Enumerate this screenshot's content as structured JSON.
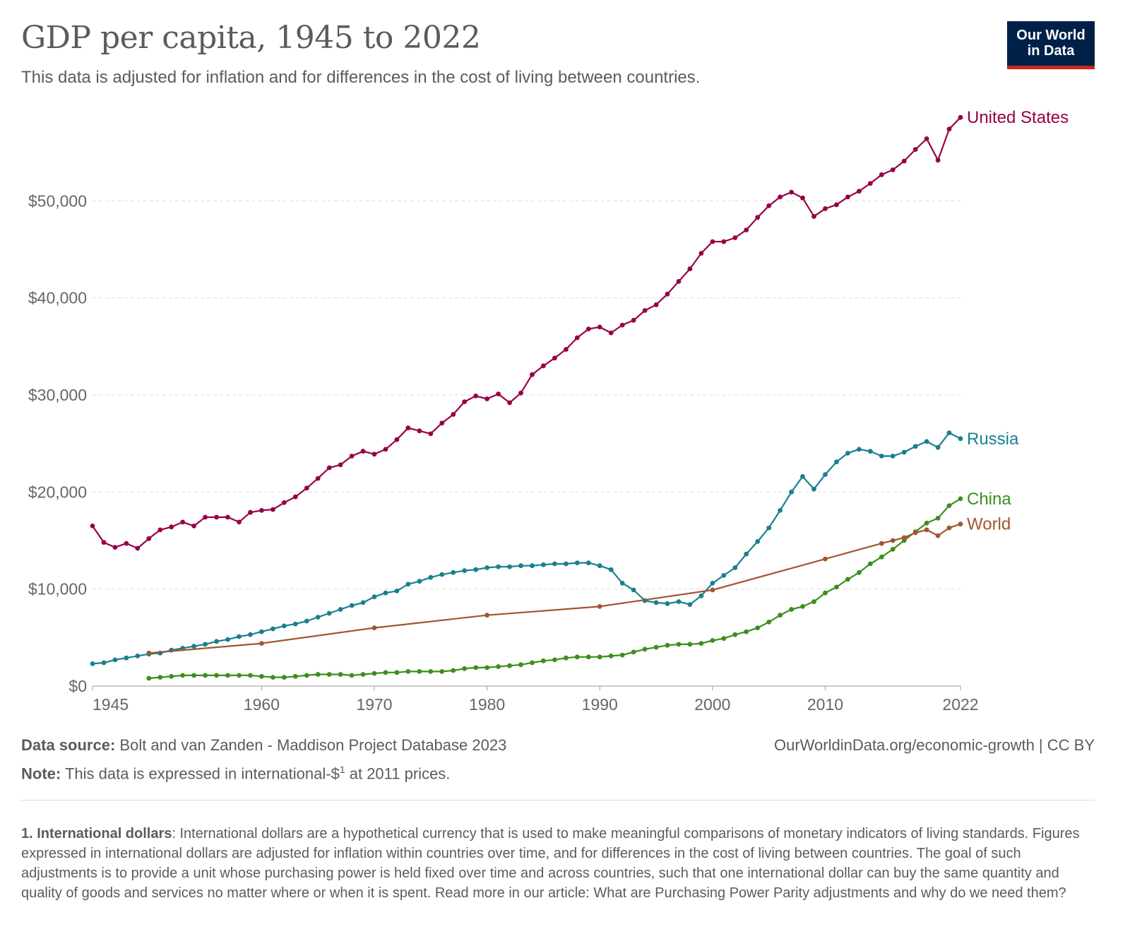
{
  "header": {
    "title": "GDP per capita, 1945 to 2022",
    "subtitle": "This data is adjusted for inflation and for differences in the cost of living between countries.",
    "logo_line1": "Our World",
    "logo_line2": "in Data"
  },
  "footer": {
    "source_label": "Data source:",
    "source_text": "Bolt and van Zanden - Maddison Project Database 2023",
    "note_label": "Note:",
    "note_text_before": "This data is expressed in international-$",
    "note_sup": "1",
    "note_text_after": " at 2011 prices.",
    "url": "OurWorldinData.org/economic-growth | CC BY"
  },
  "footnote": {
    "label": "1. International dollars",
    "text": ": International dollars are a hypothetical currency that is used to make meaningful comparisons of monetary indicators of living standards. Figures expressed in international dollars are adjusted for inflation within countries over time, and for differences in the cost of living between countries. The goal of such adjustments is to provide a unit whose purchasing power is held fixed over time and across countries, such that one international dollar can buy the same quantity and quality of goods and services no matter where or when it is spent. Read more in our article: What are Purchasing Power Parity adjustments and why do we need them?"
  },
  "chart_data": {
    "type": "line",
    "title": "GDP per capita, 1945 to 2022",
    "xlabel": "",
    "ylabel": "",
    "xlim": [
      1945,
      2022
    ],
    "ylim": [
      0,
      60000
    ],
    "x_ticks": [
      {
        "value": 1945,
        "label": "1945"
      },
      {
        "value": 1960,
        "label": "1960"
      },
      {
        "value": 1970,
        "label": "1970"
      },
      {
        "value": 1980,
        "label": "1980"
      },
      {
        "value": 1990,
        "label": "1990"
      },
      {
        "value": 2000,
        "label": "2000"
      },
      {
        "value": 2010,
        "label": "2010"
      },
      {
        "value": 2022,
        "label": "2022"
      }
    ],
    "y_ticks": [
      {
        "value": 0,
        "label": "$0"
      },
      {
        "value": 10000,
        "label": "$10,000"
      },
      {
        "value": 20000,
        "label": "$20,000"
      },
      {
        "value": 30000,
        "label": "$30,000"
      },
      {
        "value": 40000,
        "label": "$40,000"
      },
      {
        "value": 50000,
        "label": "$50,000"
      }
    ],
    "grid": "horizontal dashed",
    "legend": "line-end labels",
    "series": [
      {
        "name": "United States",
        "color": "#970046",
        "x": [
          1945,
          1946,
          1947,
          1948,
          1949,
          1950,
          1951,
          1952,
          1953,
          1954,
          1955,
          1956,
          1957,
          1958,
          1959,
          1960,
          1961,
          1962,
          1963,
          1964,
          1965,
          1966,
          1967,
          1968,
          1969,
          1970,
          1971,
          1972,
          1973,
          1974,
          1975,
          1976,
          1977,
          1978,
          1979,
          1980,
          1981,
          1982,
          1983,
          1984,
          1985,
          1986,
          1987,
          1988,
          1989,
          1990,
          1991,
          1992,
          1993,
          1994,
          1995,
          1996,
          1997,
          1998,
          1999,
          2000,
          2001,
          2002,
          2003,
          2004,
          2005,
          2006,
          2007,
          2008,
          2009,
          2010,
          2011,
          2012,
          2013,
          2014,
          2015,
          2016,
          2017,
          2018,
          2019,
          2020,
          2021,
          2022
        ],
        "values": [
          16500,
          14800,
          14300,
          14700,
          14200,
          15200,
          16100,
          16400,
          16900,
          16500,
          17400,
          17400,
          17400,
          16900,
          17900,
          18100,
          18200,
          18900,
          19500,
          20400,
          21400,
          22500,
          22800,
          23700,
          24200,
          23900,
          24400,
          25400,
          26600,
          26300,
          26000,
          27100,
          28000,
          29300,
          29900,
          29600,
          30100,
          29200,
          30200,
          32100,
          33000,
          33800,
          34700,
          35900,
          36800,
          37000,
          36400,
          37200,
          37700,
          38700,
          39300,
          40400,
          41700,
          43000,
          44600,
          45800,
          45800,
          46200,
          47000,
          48300,
          49500,
          50400,
          50900,
          50300,
          48400,
          49200,
          49600,
          50400,
          51000,
          51800,
          52700,
          53200,
          54100,
          55300,
          56400,
          54200,
          57400,
          58600
        ]
      },
      {
        "name": "Russia",
        "color": "#18808e",
        "x": [
          1945,
          1946,
          1947,
          1948,
          1949,
          1950,
          1951,
          1952,
          1953,
          1954,
          1955,
          1956,
          1957,
          1958,
          1959,
          1960,
          1961,
          1962,
          1963,
          1964,
          1965,
          1966,
          1967,
          1968,
          1969,
          1970,
          1971,
          1972,
          1973,
          1974,
          1975,
          1976,
          1977,
          1978,
          1979,
          1980,
          1981,
          1982,
          1983,
          1984,
          1985,
          1986,
          1987,
          1988,
          1989,
          1990,
          1991,
          1992,
          1993,
          1994,
          1995,
          1996,
          1997,
          1998,
          1999,
          2000,
          2001,
          2002,
          2003,
          2004,
          2005,
          2006,
          2007,
          2008,
          2009,
          2010,
          2011,
          2012,
          2013,
          2014,
          2015,
          2016,
          2017,
          2018,
          2019,
          2020,
          2021,
          2022
        ],
        "values": [
          2300,
          2400,
          2700,
          2900,
          3100,
          3300,
          3400,
          3700,
          3900,
          4100,
          4300,
          4600,
          4800,
          5100,
          5300,
          5600,
          5900,
          6200,
          6400,
          6700,
          7100,
          7500,
          7900,
          8300,
          8600,
          9200,
          9600,
          9800,
          10500,
          10800,
          11200,
          11500,
          11700,
          11900,
          12000,
          12200,
          12300,
          12300,
          12400,
          12400,
          12500,
          12600,
          12600,
          12700,
          12700,
          12400,
          12000,
          10600,
          9900,
          8800,
          8600,
          8500,
          8700,
          8400,
          9300,
          10600,
          11400,
          12200,
          13600,
          14900,
          16300,
          18100,
          20000,
          21600,
          20300,
          21800,
          23100,
          24000,
          24400,
          24200,
          23700,
          23700,
          24100,
          24700,
          25200,
          24600,
          26100,
          25500
        ]
      },
      {
        "name": "China",
        "color": "#3c8e1e",
        "x": [
          1950,
          1951,
          1952,
          1953,
          1954,
          1955,
          1956,
          1957,
          1958,
          1959,
          1960,
          1961,
          1962,
          1963,
          1964,
          1965,
          1966,
          1967,
          1968,
          1969,
          1970,
          1971,
          1972,
          1973,
          1974,
          1975,
          1976,
          1977,
          1978,
          1979,
          1980,
          1981,
          1982,
          1983,
          1984,
          1985,
          1986,
          1987,
          1988,
          1989,
          1990,
          1991,
          1992,
          1993,
          1994,
          1995,
          1996,
          1997,
          1998,
          1999,
          2000,
          2001,
          2002,
          2003,
          2004,
          2005,
          2006,
          2007,
          2008,
          2009,
          2010,
          2011,
          2012,
          2013,
          2014,
          2015,
          2016,
          2017,
          2018,
          2019,
          2020,
          2021,
          2022
        ],
        "values": [
          800,
          900,
          1000,
          1100,
          1100,
          1100,
          1100,
          1100,
          1100,
          1100,
          1000,
          900,
          900,
          1000,
          1100,
          1200,
          1200,
          1200,
          1100,
          1200,
          1300,
          1400,
          1400,
          1500,
          1500,
          1500,
          1500,
          1600,
          1800,
          1900,
          1900,
          2000,
          2100,
          2200,
          2400,
          2600,
          2700,
          2900,
          3000,
          3000,
          3000,
          3100,
          3200,
          3500,
          3800,
          4000,
          4200,
          4300,
          4300,
          4400,
          4700,
          4900,
          5300,
          5600,
          6000,
          6600,
          7300,
          7900,
          8200,
          8700,
          9600,
          10200,
          11000,
          11700,
          12600,
          13300,
          14100,
          15000,
          15900,
          16800,
          17300,
          18600,
          19300
        ]
      },
      {
        "name": "World",
        "color": "#a2552e",
        "x": [
          1950,
          1960,
          1970,
          1980,
          1990,
          2000,
          2010,
          2015,
          2016,
          2017,
          2018,
          2019,
          2020,
          2021,
          2022
        ],
        "values": [
          3400,
          4400,
          6000,
          7300,
          8200,
          9900,
          13100,
          14700,
          15000,
          15300,
          15800,
          16100,
          15500,
          16300,
          16700
        ]
      }
    ]
  }
}
